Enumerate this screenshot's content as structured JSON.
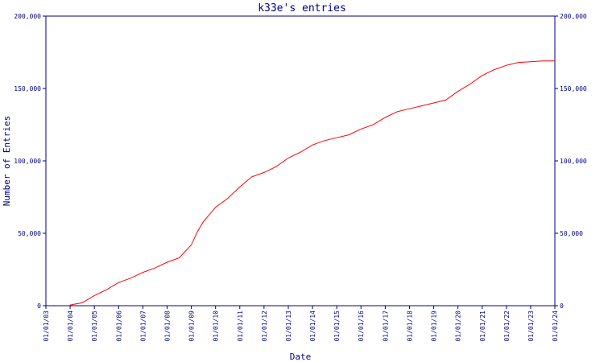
{
  "chart_data": {
    "type": "line",
    "title": "k33e's entries",
    "xlabel": "Date",
    "ylabel": "Number of Entries",
    "xlim": [
      "2003-01-01",
      "2024-01-01"
    ],
    "ylim": [
      0,
      200000
    ],
    "x_ticks": [
      "01/01/03",
      "01/01/04",
      "01/01/05",
      "01/01/06",
      "01/01/07",
      "01/01/08",
      "01/01/09",
      "01/01/10",
      "01/01/11",
      "01/01/12",
      "01/01/13",
      "01/01/14",
      "01/01/15",
      "01/01/16",
      "01/01/17",
      "01/01/18",
      "01/01/19",
      "01/01/20",
      "01/01/21",
      "01/01/22",
      "01/01/23",
      "01/01/24"
    ],
    "y_ticks": [
      {
        "value": 0,
        "label": "0"
      },
      {
        "value": 50000,
        "label": "50,000"
      },
      {
        "value": 100000,
        "label": "100,000"
      },
      {
        "value": 150000,
        "label": "150,000"
      },
      {
        "value": 200000,
        "label": "200,000"
      }
    ],
    "grid": false,
    "colors": {
      "axis": "#000080",
      "line": "#ff0000"
    },
    "series": [
      {
        "x": [
          "2004-01-01",
          "2004-07-01",
          "2005-01-01",
          "2005-07-01",
          "2006-01-01",
          "2006-07-01",
          "2007-01-01",
          "2007-07-01",
          "2008-01-01",
          "2008-07-01",
          "2009-01-01",
          "2009-04-01",
          "2009-07-01",
          "2010-01-01",
          "2010-07-01",
          "2011-01-01",
          "2011-07-01",
          "2012-01-01",
          "2012-07-01",
          "2013-01-01",
          "2013-07-01",
          "2014-01-01",
          "2014-07-01",
          "2015-01-01",
          "2015-07-01",
          "2016-01-01",
          "2016-07-01",
          "2017-01-01",
          "2017-07-01",
          "2018-01-01",
          "2018-07-01",
          "2019-01-01",
          "2019-07-01",
          "2020-01-01",
          "2020-07-01",
          "2021-01-01",
          "2021-07-01",
          "2022-01-01",
          "2022-07-01",
          "2023-01-01",
          "2023-07-01",
          "2024-01-01"
        ],
        "values": [
          500,
          2000,
          7000,
          11000,
          16000,
          19000,
          23000,
          26000,
          30000,
          33000,
          42000,
          51000,
          58000,
          68000,
          74000,
          82000,
          89000,
          92000,
          96000,
          102000,
          106000,
          111000,
          114000,
          116000,
          118000,
          122000,
          125000,
          130000,
          134000,
          136000,
          138000,
          140000,
          142000,
          148000,
          153000,
          159000,
          163000,
          166000,
          168000,
          168500,
          169000,
          169000
        ]
      }
    ]
  }
}
